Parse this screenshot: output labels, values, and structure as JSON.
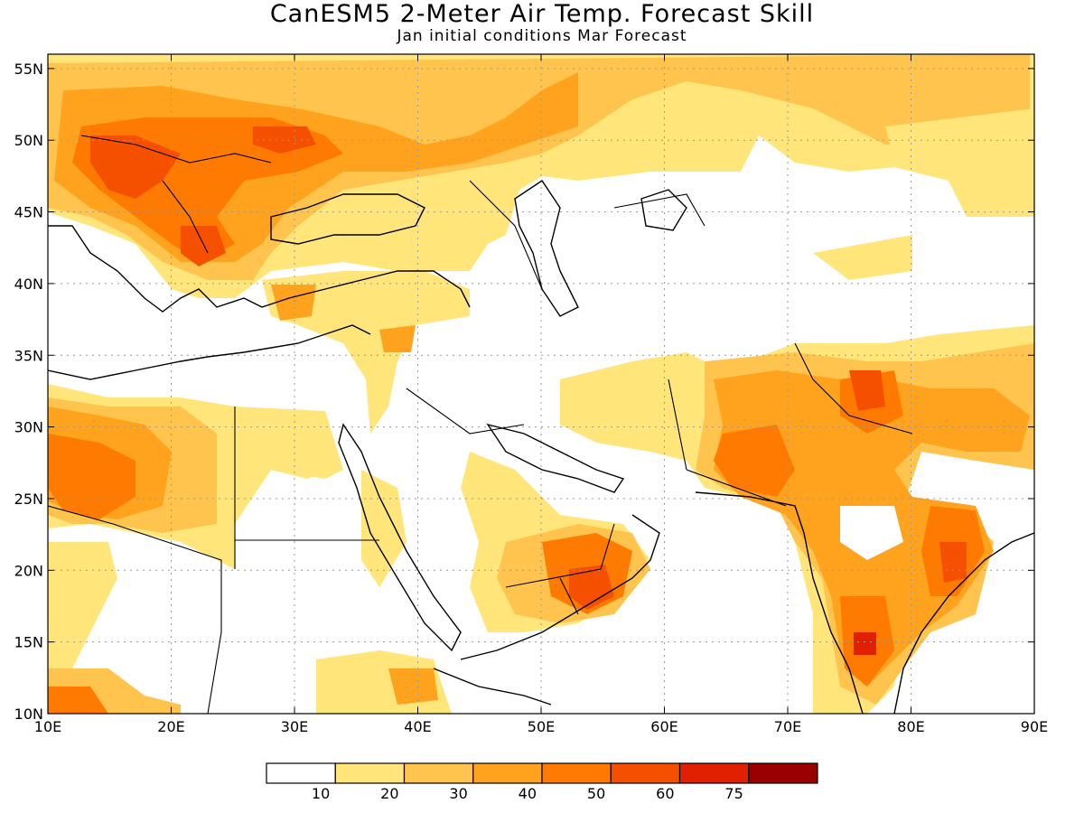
{
  "header": {
    "title": "CanESM5 2-Meter Air Temp. Forecast Skill",
    "subtitle": "Jan initial conditions   Mar Forecast"
  },
  "map": {
    "lon_range": [
      10,
      90
    ],
    "lat_range": [
      10,
      56
    ],
    "x_ticks": [
      "10E",
      "20E",
      "30E",
      "40E",
      "50E",
      "60E",
      "70E",
      "80E",
      "90E"
    ],
    "y_ticks": [
      "10N",
      "15N",
      "20N",
      "25N",
      "30N",
      "35N",
      "40N",
      "45N",
      "50N",
      "55N"
    ],
    "grid": "dotted"
  },
  "colorbar": {
    "labels": [
      "10",
      "20",
      "30",
      "40",
      "50",
      "60",
      "75"
    ],
    "colors": [
      "#ffffff",
      "#ffe57a",
      "#ffc44d",
      "#ffa21e",
      "#ff7a00",
      "#f54f00",
      "#e02000",
      "#9b0000"
    ]
  }
}
